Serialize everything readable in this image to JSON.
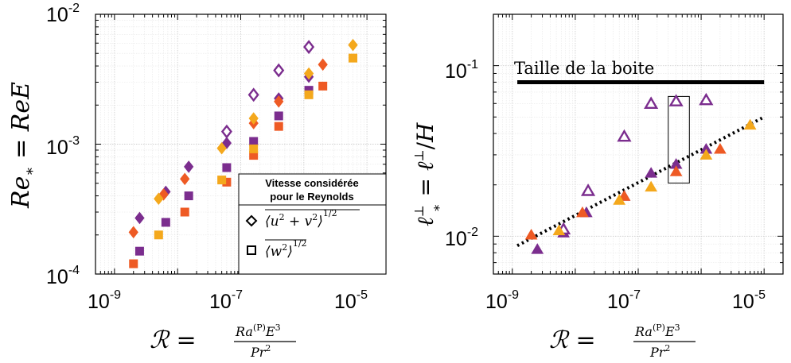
{
  "colors": {
    "purple": "#7B2D8E",
    "orange": "#EE5A24",
    "amber": "#F4A81C",
    "box_line": "#000000",
    "thick_line": "#000000"
  },
  "chart_data": [
    {
      "type": "scatter",
      "xscale": "log",
      "yscale": "log",
      "xlim": [
        5e-10,
        2e-05
      ],
      "ylim": [
        0.0001,
        0.01
      ],
      "grid": true,
      "xlabel": "R = Ra^(P) E^3 / Pr^2",
      "ylabel": "Re* = ReE",
      "xticks": [
        {
          "base": "10",
          "exp": "-9",
          "value": 1e-09
        },
        {
          "base": "10",
          "exp": "-7",
          "value": 1e-07
        },
        {
          "base": "10",
          "exp": "-5",
          "value": 1e-05
        }
      ],
      "yticks": [
        {
          "base": "10",
          "exp": "-4",
          "value": 0.0001
        },
        {
          "base": "10",
          "exp": "-3",
          "value": 0.001
        },
        {
          "base": "10",
          "exp": "-2",
          "value": 0.01
        }
      ],
      "legend": {
        "title_line1": "Vitesse considérée",
        "title_line2": "pour le Reynolds",
        "entries": [
          {
            "marker": "diamond",
            "label": "⟨u² + v²⟩^1/2"
          },
          {
            "marker": "square",
            "label": "⟨w²⟩^1/2"
          }
        ],
        "position": "lower-right"
      },
      "series": [
        {
          "marker": "diamond",
          "color": "purple",
          "filled": true,
          "points": [
            [
              2.5e-09,
              0.00027
            ],
            [
              6.5e-09,
              0.00043
            ],
            [
              1.5e-08,
              0.00067
            ],
            [
              6e-08,
              0.00102
            ],
            [
              4e-07,
              0.00225
            ],
            [
              1.2e-06,
              0.0033
            ]
          ]
        },
        {
          "marker": "diamond",
          "color": "purple",
          "filled": false,
          "points": [
            [
              6e-08,
              0.00125
            ],
            [
              1.6e-07,
              0.0024
            ],
            [
              4e-07,
              0.0037
            ],
            [
              1.2e-06,
              0.0056
            ]
          ]
        },
        {
          "marker": "diamond",
          "color": "orange",
          "filled": true,
          "points": [
            [
              2e-09,
              0.00021
            ],
            [
              6e-09,
              0.00041
            ],
            [
              1.3e-08,
              0.00054
            ],
            [
              1.6e-07,
              0.00145
            ],
            [
              4e-07,
              0.00213
            ],
            [
              2e-06,
              0.0041
            ]
          ]
        },
        {
          "marker": "diamond",
          "color": "amber",
          "filled": true,
          "points": [
            [
              5e-09,
              0.00038
            ],
            [
              5e-08,
              0.00093
            ],
            [
              1.6e-07,
              0.00158
            ],
            [
              1.2e-06,
              0.0035
            ],
            [
              6e-06,
              0.0058
            ]
          ]
        },
        {
          "marker": "square",
          "color": "purple",
          "filled": true,
          "points": [
            [
              2.5e-09,
              0.00015
            ],
            [
              6.5e-09,
              0.00025
            ],
            [
              1.5e-08,
              0.0004
            ],
            [
              6e-08,
              0.00066
            ],
            [
              1.6e-07,
              0.00105
            ],
            [
              4e-07,
              0.00165
            ],
            [
              1.2e-06,
              0.0026
            ]
          ]
        },
        {
          "marker": "square",
          "color": "orange",
          "filled": true,
          "points": [
            [
              2e-09,
              0.00012
            ],
            [
              1.3e-08,
              0.0003
            ],
            [
              6e-08,
              0.00051
            ],
            [
              1.6e-07,
              0.00082
            ],
            [
              4e-07,
              0.00137
            ],
            [
              2e-06,
              0.0028
            ]
          ]
        },
        {
          "marker": "square",
          "color": "amber",
          "filled": true,
          "points": [
            [
              5e-09,
              0.0002
            ],
            [
              5e-08,
              0.00053
            ],
            [
              1.6e-07,
              0.00092
            ],
            [
              1.2e-06,
              0.0024
            ],
            [
              6e-06,
              0.0046
            ]
          ]
        }
      ]
    },
    {
      "type": "scatter",
      "xscale": "log",
      "yscale": "log",
      "xlim": [
        5e-10,
        2e-05
      ],
      "ylim": [
        0.006,
        0.2
      ],
      "grid": true,
      "xlabel": "R = Ra^(P) E^3 / Pr^2",
      "ylabel": "ℓ⊥* = ℓ⊥/H",
      "xticks": [
        {
          "base": "10",
          "exp": "-9",
          "value": 1e-09
        },
        {
          "base": "10",
          "exp": "-7",
          "value": 1e-07
        },
        {
          "base": "10",
          "exp": "-5",
          "value": 1e-05
        }
      ],
      "yticks": [
        {
          "base": "10",
          "exp": "-2",
          "value": 0.01
        },
        {
          "base": "10",
          "exp": "-1",
          "value": 0.1
        }
      ],
      "annotation": "Taille de la boite",
      "box_size_line": {
        "y": 0.08,
        "x": [
          1.2e-09,
          1e-05
        ]
      },
      "fit_line": {
        "x": [
          1.2e-09,
          1e-05
        ],
        "y": [
          0.0088,
          0.05
        ],
        "style": "dotted"
      },
      "highlight_box": {
        "x": [
          3e-07,
          6.5e-07
        ],
        "y": [
          0.0205,
          0.066
        ]
      },
      "series": [
        {
          "marker": "triangle",
          "color": "purple",
          "filled": true,
          "points": [
            [
              2.5e-09,
              0.0084
            ],
            [
              6.5e-09,
              0.0105
            ],
            [
              1.5e-08,
              0.0138
            ],
            [
              6e-08,
              0.0172
            ],
            [
              1.6e-07,
              0.0235
            ],
            [
              4e-07,
              0.0265
            ],
            [
              1.2e-06,
              0.0325
            ]
          ]
        },
        {
          "marker": "triangle",
          "color": "purple",
          "filled": false,
          "points": [
            [
              6.5e-09,
              0.011
            ],
            [
              1.6e-08,
              0.0185
            ],
            [
              6e-08,
              0.0385
            ],
            [
              1.6e-07,
              0.06
            ],
            [
              4e-07,
              0.062
            ],
            [
              1.2e-06,
              0.063
            ]
          ]
        },
        {
          "marker": "triangle",
          "color": "orange",
          "filled": true,
          "points": [
            [
              2e-09,
              0.0102
            ],
            [
              1.3e-08,
              0.0138
            ],
            [
              6e-08,
              0.0172
            ],
            [
              4e-07,
              0.024
            ],
            [
              2e-06,
              0.0325
            ]
          ]
        },
        {
          "marker": "triangle",
          "color": "amber",
          "filled": true,
          "points": [
            [
              5.5e-09,
              0.0108
            ],
            [
              5e-08,
              0.0163
            ],
            [
              1.6e-07,
              0.0195
            ],
            [
              1.2e-06,
              0.03
            ],
            [
              6e-06,
              0.045
            ]
          ]
        }
      ]
    }
  ]
}
